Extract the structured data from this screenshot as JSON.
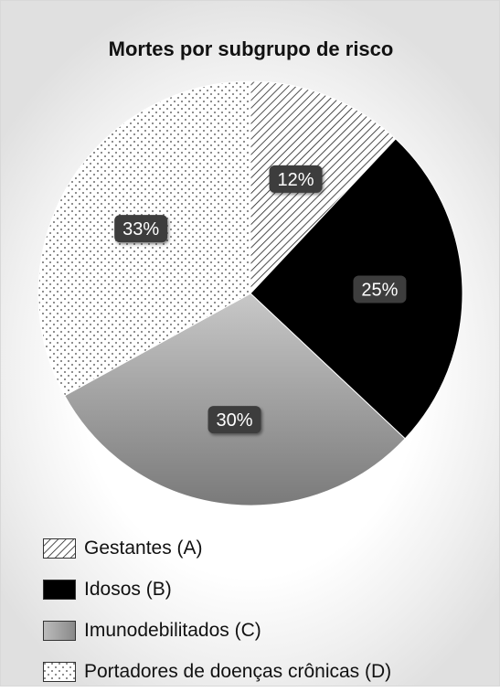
{
  "chart_data": {
    "type": "pie",
    "title": "Mortes por subgrupo de risco",
    "categories": [
      "Gestantes (A)",
      "Idosos (B)",
      "Imunodebilitados (C)",
      "Portadores de doenças crônicas (D)"
    ],
    "values": [
      12,
      25,
      30,
      33
    ],
    "data_labels": [
      "12%",
      "25%",
      "30%",
      "33%"
    ],
    "fills": [
      "diagonal-hatch",
      "#000000",
      "gray-gradient",
      "dotted-pattern"
    ],
    "start": "12 o'clock, clockwise",
    "legend_position": "bottom-left"
  }
}
